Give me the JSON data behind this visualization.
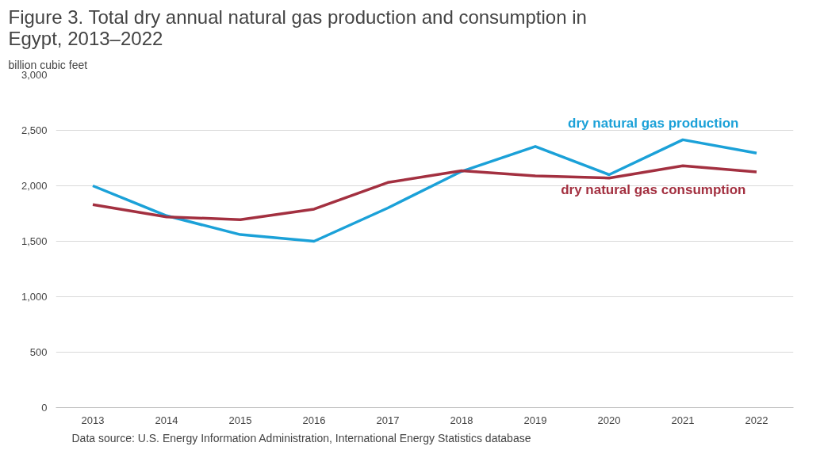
{
  "chart_data": {
    "type": "line",
    "title": "Figure 3. Total dry annual natural gas production and consumption in Egypt, 2013–2022",
    "ylabel": "billion cubic feet",
    "categories": [
      "2013",
      "2014",
      "2015",
      "2016",
      "2017",
      "2018",
      "2019",
      "2020",
      "2021",
      "2022"
    ],
    "series": [
      {
        "name": "dry natural gas production",
        "color": "#1ba1d8",
        "values": [
          2000,
          1730,
          1560,
          1500,
          1800,
          2130,
          2355,
          2100,
          2415,
          2295
        ]
      },
      {
        "name": "dry natural gas consumption",
        "color": "#a33040",
        "values": [
          1830,
          1720,
          1695,
          1790,
          2030,
          2135,
          2090,
          2070,
          2180,
          2125
        ]
      }
    ],
    "ylim": [
      0,
      3000
    ],
    "yticks": [
      0,
      500,
      {
        "value": 1000,
        "label": "1,000"
      },
      {
        "value": 1500,
        "label": "1,500"
      },
      {
        "value": 2000,
        "label": "2,000"
      },
      {
        "value": 2500,
        "label": "2,500"
      },
      {
        "value": 3000,
        "label": "3,000"
      }
    ],
    "grid": "y",
    "legend": false,
    "marker": "none",
    "line_style": "solid",
    "annotations": [
      "Data source: U.S. Energy Information Administration, International Energy Statistics database"
    ]
  }
}
